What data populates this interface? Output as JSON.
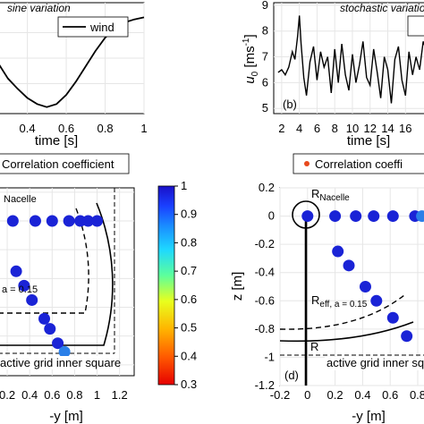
{
  "colors": {
    "axis": "#000000",
    "grid": "#e6e6e6",
    "wind_line": "#000000",
    "legend_marker": "#e8491d",
    "markers": "#1a23d6",
    "marker_lightest": "#2a7fe8",
    "cylinder": "#000000"
  },
  "chart_data": [
    {
      "id": "a",
      "type": "line",
      "title": "sine variation",
      "xlabel": "time [s]",
      "ylabel": "",
      "xlim": [
        0.25,
        1.0
      ],
      "xticks": [
        "0.4",
        "0.6",
        "0.8",
        "1"
      ],
      "grid": true,
      "legend": {
        "entries": [
          "wind"
        ],
        "placement": "top-right"
      },
      "series": [
        {
          "name": "wind",
          "x": [
            0.25,
            0.3,
            0.35,
            0.4,
            0.45,
            0.5,
            0.55,
            0.6,
            0.65,
            0.7,
            0.75,
            0.8,
            0.85,
            0.9,
            0.95,
            1.0
          ],
          "y": [
            0.45,
            0.3,
            0.2,
            0.11,
            0.05,
            0.02,
            0.05,
            0.14,
            0.27,
            0.42,
            0.57,
            0.7,
            0.79,
            0.85,
            0.88,
            0.9
          ]
        }
      ]
    },
    {
      "id": "b",
      "type": "line",
      "title": "stochastic variation",
      "panel_label": "(b)",
      "xlabel": "time [s]",
      "ylabel": "u",
      "ylabel_sub": "0",
      "ylabel_unit": "[ms",
      "ylabel_unit_sup": "-1",
      "ylabel_unit_end": "]",
      "xlim": [
        1.1,
        18.5
      ],
      "ylim": [
        4.8,
        9.1
      ],
      "xticks": [
        "2",
        "4",
        "6",
        "8",
        "10",
        "12",
        "14",
        "16"
      ],
      "yticks": [
        "5",
        "6",
        "7",
        "8",
        "9"
      ],
      "grid": true,
      "series": [
        {
          "name": "",
          "x": [
            1.6,
            2.0,
            2.4,
            2.8,
            3.2,
            3.5,
            3.8,
            4.0,
            4.2,
            4.5,
            4.8,
            5.2,
            5.6,
            6.0,
            6.4,
            6.8,
            7.2,
            7.6,
            8.0,
            8.4,
            8.8,
            9.2,
            9.6,
            10.0,
            10.4,
            10.8,
            11.2,
            11.6,
            12.0,
            12.4,
            12.8,
            13.2,
            13.6,
            14.0,
            14.4,
            14.8,
            15.2,
            15.6,
            16.0,
            16.4,
            16.8,
            17.2,
            17.6,
            18.0,
            18.4
          ],
          "y": [
            6.4,
            6.5,
            6.3,
            6.6,
            7.2,
            6.9,
            7.8,
            8.6,
            7.5,
            6.2,
            5.5,
            6.8,
            7.4,
            6.1,
            7.2,
            6.6,
            7.0,
            5.6,
            7.3,
            6.0,
            7.5,
            6.3,
            5.7,
            7.1,
            6.0,
            6.7,
            7.6,
            6.2,
            5.9,
            7.3,
            6.4,
            5.4,
            7.0,
            6.5,
            5.2,
            6.9,
            7.4,
            6.1,
            5.5,
            7.2,
            6.3,
            7.0,
            6.5,
            7.6,
            7.2
          ]
        }
      ]
    },
    {
      "id": "c",
      "type": "scatter",
      "title": "",
      "xlabel": "-y [m]",
      "ylabel": "",
      "xlim": [
        0.12,
        1.33
      ],
      "ylim": [
        -1.2,
        0.23
      ],
      "xticks": [
        "0.2",
        "0.4",
        "0.6",
        "0.8",
        "1",
        "1.2"
      ],
      "grid": true,
      "legend": {
        "entries": [
          "Correlation coefficient"
        ],
        "placement": "top"
      },
      "annotations": {
        "nacelle": "Nacelle",
        "a_label": "a = 0.15",
        "square_label": "active grid inner square"
      },
      "points": [
        {
          "x": 0.25,
          "y": 0.0,
          "c": 0.97
        },
        {
          "x": 0.45,
          "y": 0.0,
          "c": 0.97
        },
        {
          "x": 0.6,
          "y": 0.0,
          "c": 0.97
        },
        {
          "x": 0.75,
          "y": 0.0,
          "c": 0.96
        },
        {
          "x": 0.85,
          "y": 0.0,
          "c": 0.95
        },
        {
          "x": 0.92,
          "y": 0.0,
          "c": 0.93
        },
        {
          "x": 1.0,
          "y": 0.0,
          "c": 0.93
        },
        {
          "x": 0.28,
          "y": -0.35,
          "c": 0.97
        },
        {
          "x": 0.35,
          "y": -0.45,
          "c": 0.97
        },
        {
          "x": 0.42,
          "y": -0.55,
          "c": 0.96
        },
        {
          "x": 0.53,
          "y": -0.68,
          "c": 0.96
        },
        {
          "x": 0.58,
          "y": -0.75,
          "c": 0.95
        },
        {
          "x": 0.65,
          "y": -0.85,
          "c": 0.94
        },
        {
          "x": 0.71,
          "y": -0.91,
          "c": 0.86
        }
      ]
    },
    {
      "id": "d",
      "type": "scatter",
      "title": "",
      "panel_label": "(d)",
      "xlabel": "-y [m]",
      "ylabel": "z [m]",
      "xlim": [
        -0.2,
        0.85
      ],
      "ylim": [
        -1.2,
        0.2
      ],
      "xticks": [
        "-0.2",
        "0",
        "0.2",
        "0.4",
        "0.6",
        "0.8"
      ],
      "yticks": [
        "0.2",
        "0",
        "-0.2",
        "-0.4",
        "-0.6",
        "-0.8",
        "-1",
        "-1.2"
      ],
      "grid": true,
      "legend": {
        "entries": [
          "Correlation coeffi"
        ],
        "placement": "top"
      },
      "annotations": {
        "nacelle_main": "R",
        "nacelle_sub": "Nacelle",
        "reff_main": "R",
        "reff_sub": "eff, a = 0.15",
        "r_label": "R",
        "square_label": "active grid inner square"
      },
      "points": [
        {
          "x": 0.0,
          "y": 0.0,
          "c": 0.97
        },
        {
          "x": 0.2,
          "y": 0.0,
          "c": 0.97
        },
        {
          "x": 0.35,
          "y": 0.0,
          "c": 0.97
        },
        {
          "x": 0.48,
          "y": 0.0,
          "c": 0.97
        },
        {
          "x": 0.62,
          "y": 0.0,
          "c": 0.96
        },
        {
          "x": 0.78,
          "y": 0.0,
          "c": 0.95
        },
        {
          "x": 0.83,
          "y": 0.0,
          "c": 0.9
        },
        {
          "x": 0.22,
          "y": -0.25,
          "c": 0.97
        },
        {
          "x": 0.3,
          "y": -0.35,
          "c": 0.97
        },
        {
          "x": 0.42,
          "y": -0.5,
          "c": 0.97
        },
        {
          "x": 0.5,
          "y": -0.6,
          "c": 0.96
        },
        {
          "x": 0.62,
          "y": -0.72,
          "c": 0.96
        },
        {
          "x": 0.72,
          "y": -0.85,
          "c": 0.96
        }
      ]
    }
  ],
  "colorbar": {
    "range": [
      0.3,
      1.0
    ],
    "ticks": [
      "1",
      "0.9",
      "0.8",
      "0.7",
      "0.6",
      "0.5",
      "0.4",
      "0.3"
    ],
    "colormap": "jet"
  }
}
